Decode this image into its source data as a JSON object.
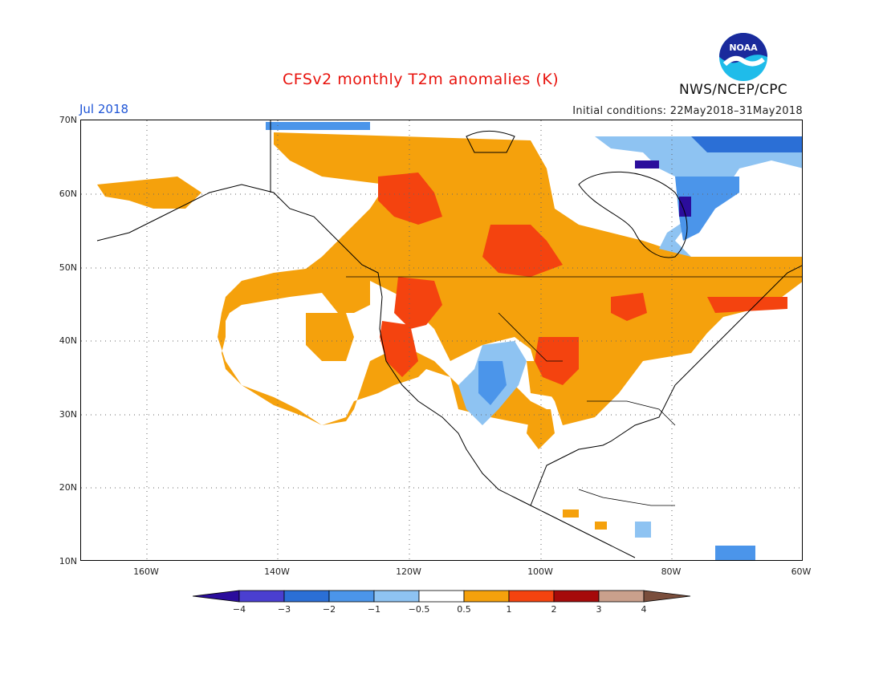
{
  "header": {
    "title": "CFSv2 monthly T2m anomalies (K)",
    "organization": "NWS/NCEP/CPC",
    "month": "Jul 2018",
    "initial_conditions": "Initial conditions: 22May2018–31May2018",
    "logo_text": "NOAA"
  },
  "axes": {
    "lat_labels": [
      "70N",
      "60N",
      "50N",
      "40N",
      "30N",
      "20N",
      "10N"
    ],
    "lon_labels": [
      "160W",
      "140W",
      "120W",
      "100W",
      "80W",
      "60W"
    ]
  },
  "colorbar": {
    "labels": [
      "−4",
      "−3",
      "−2",
      "−1",
      "−0.5",
      "0.5",
      "1",
      "2",
      "3",
      "4"
    ],
    "colors": [
      "#2b0d9c",
      "#4a3fd0",
      "#2b6fd6",
      "#4b95ea",
      "#8ec3f2",
      "#ffffff",
      "#f5a10c",
      "#f4430f",
      "#a50a0a",
      "#caa08c",
      "#7a4e3c"
    ]
  }
}
